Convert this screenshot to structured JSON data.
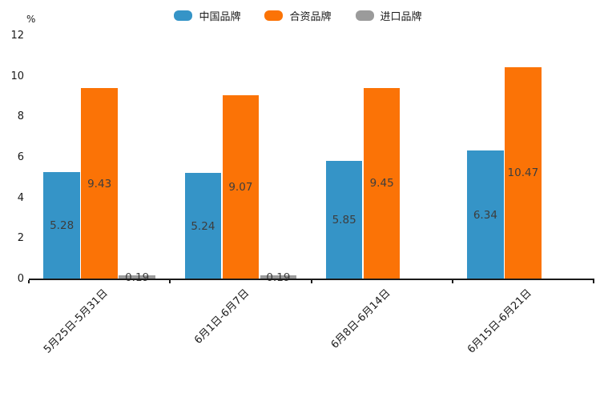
{
  "chart_data": {
    "type": "bar",
    "title": "",
    "categories": [
      "5月25日-5月31日",
      "6月1日-6月7日",
      "6月8日-6月14日",
      "6月15日-6月21日"
    ],
    "series": [
      {
        "name": "中国品牌",
        "color": "#3594c7",
        "values": [
          5.28,
          5.24,
          5.85,
          6.34
        ]
      },
      {
        "name": "合资品牌",
        "color": "#fb7306",
        "values": [
          9.43,
          9.07,
          9.45,
          10.47
        ]
      },
      {
        "name": "进口品牌",
        "color": "#9b9b9b",
        "values": [
          0.19,
          0.19,
          null,
          null
        ]
      }
    ],
    "value_labels": [
      "5.28",
      "5.24",
      "5.85",
      "6.34",
      "9.43",
      "9.07",
      "9.45",
      "10.47",
      "0.19",
      "0.19"
    ],
    "xlabel": "",
    "ylabel": "%",
    "ylim": [
      0,
      12
    ],
    "yticks": [
      0,
      2,
      4,
      6,
      8,
      10,
      12
    ],
    "grid": false,
    "legend_position": "top",
    "x_label_rotation_deg": 45,
    "value_label_color": "#3d3d3d",
    "axis_color": "#1a1a1a"
  }
}
